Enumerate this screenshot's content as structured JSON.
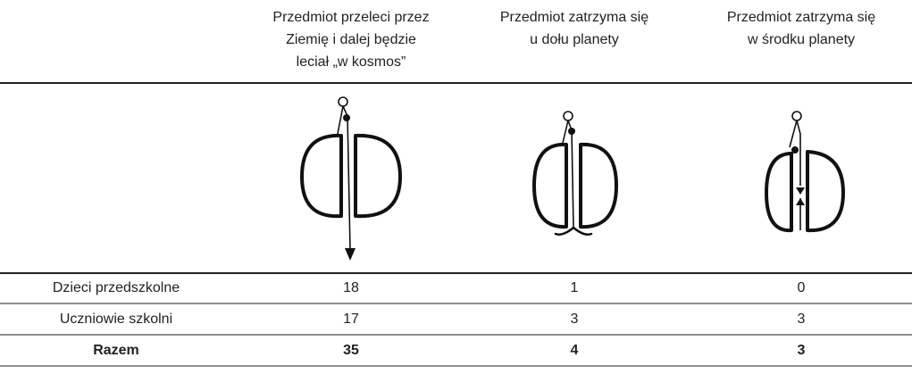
{
  "table": {
    "columns": [
      {
        "lines": [
          "Przedmiot przeleci przez",
          "Ziemię i dalej będzie",
          "leciał „w kosmos”"
        ]
      },
      {
        "lines": [
          "Przedmiot zatrzyma się",
          "u dołu planety"
        ]
      },
      {
        "lines": [
          "Przedmiot zatrzyma się",
          "w środku planety"
        ]
      }
    ],
    "rows": [
      {
        "label": "Dzieci przedszkolne",
        "values": [
          18,
          1,
          0
        ]
      },
      {
        "label": "Uczniowie szkolni",
        "values": [
          17,
          3,
          3
        ]
      },
      {
        "label": "Razem",
        "values": [
          35,
          4,
          3
        ]
      }
    ]
  }
}
